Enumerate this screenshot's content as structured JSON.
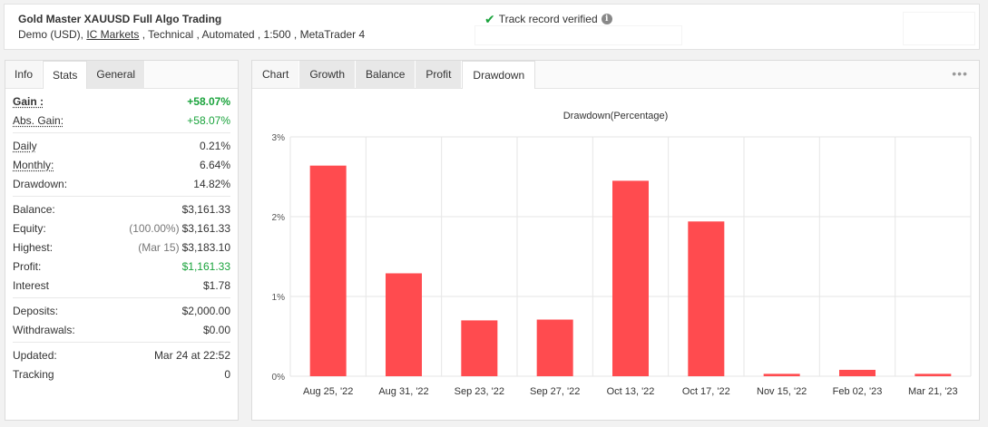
{
  "header": {
    "title": "Gold Master XAUUSD Full Algo Trading",
    "subtitle_pre": "Demo (USD), ",
    "subtitle_link": "IC Markets",
    "subtitle_post": " , Technical , Automated , 1:500 , MetaTrader 4",
    "verified_label": "Track record verified",
    "verified_icon": "check-icon",
    "info_icon": "info-icon"
  },
  "left_tabs": [
    "Info",
    "Stats",
    "General"
  ],
  "stats": {
    "gain_label": "Gain :",
    "gain_value": "+58.07%",
    "abs_gain_label": "Abs. Gain:",
    "abs_gain_value": "+58.07%",
    "daily_label": "Daily",
    "daily_value": "0.21%",
    "monthly_label": "Monthly:",
    "monthly_value": "6.64%",
    "drawdown_label": "Drawdown:",
    "drawdown_value": "14.82%",
    "balance_label": "Balance:",
    "balance_value": "$3,161.33",
    "equity_label": "Equity:",
    "equity_note": "(100.00%)",
    "equity_value": "$3,161.33",
    "highest_label": "Highest:",
    "highest_note": "(Mar 15)",
    "highest_value": "$3,183.10",
    "profit_label": "Profit:",
    "profit_value": "$1,161.33",
    "interest_label": "Interest",
    "interest_value": "$1.78",
    "deposits_label": "Deposits:",
    "deposits_value": "$2,000.00",
    "withdrawals_label": "Withdrawals:",
    "withdrawals_value": "$0.00",
    "updated_label": "Updated:",
    "updated_value": "Mar 24 at 22:52",
    "tracking_label": "Tracking",
    "tracking_value": "0"
  },
  "right_tabs": [
    "Chart",
    "Growth",
    "Balance",
    "Profit",
    "Drawdown"
  ],
  "more_icon": "more-dots-icon",
  "colors": {
    "bar": "#ff4b4f",
    "green": "#1aa33c",
    "grid": "#e6e6e6"
  },
  "chart_data": {
    "type": "bar",
    "title": "Drawdown(Percentage)",
    "categories": [
      "Aug 25, '22",
      "Aug 31, '22",
      "Sep 23, '22",
      "Sep 27, '22",
      "Oct 13, '22",
      "Oct 17, '22",
      "Nov 15, '22",
      "Feb 02, '23",
      "Mar 21, '23"
    ],
    "values": [
      2.64,
      1.29,
      0.7,
      0.71,
      2.45,
      1.94,
      0.03,
      0.08,
      0.03
    ],
    "ylim": [
      0,
      3
    ],
    "yticks": [
      "0%",
      "1%",
      "2%",
      "3%"
    ],
    "grid": true
  }
}
